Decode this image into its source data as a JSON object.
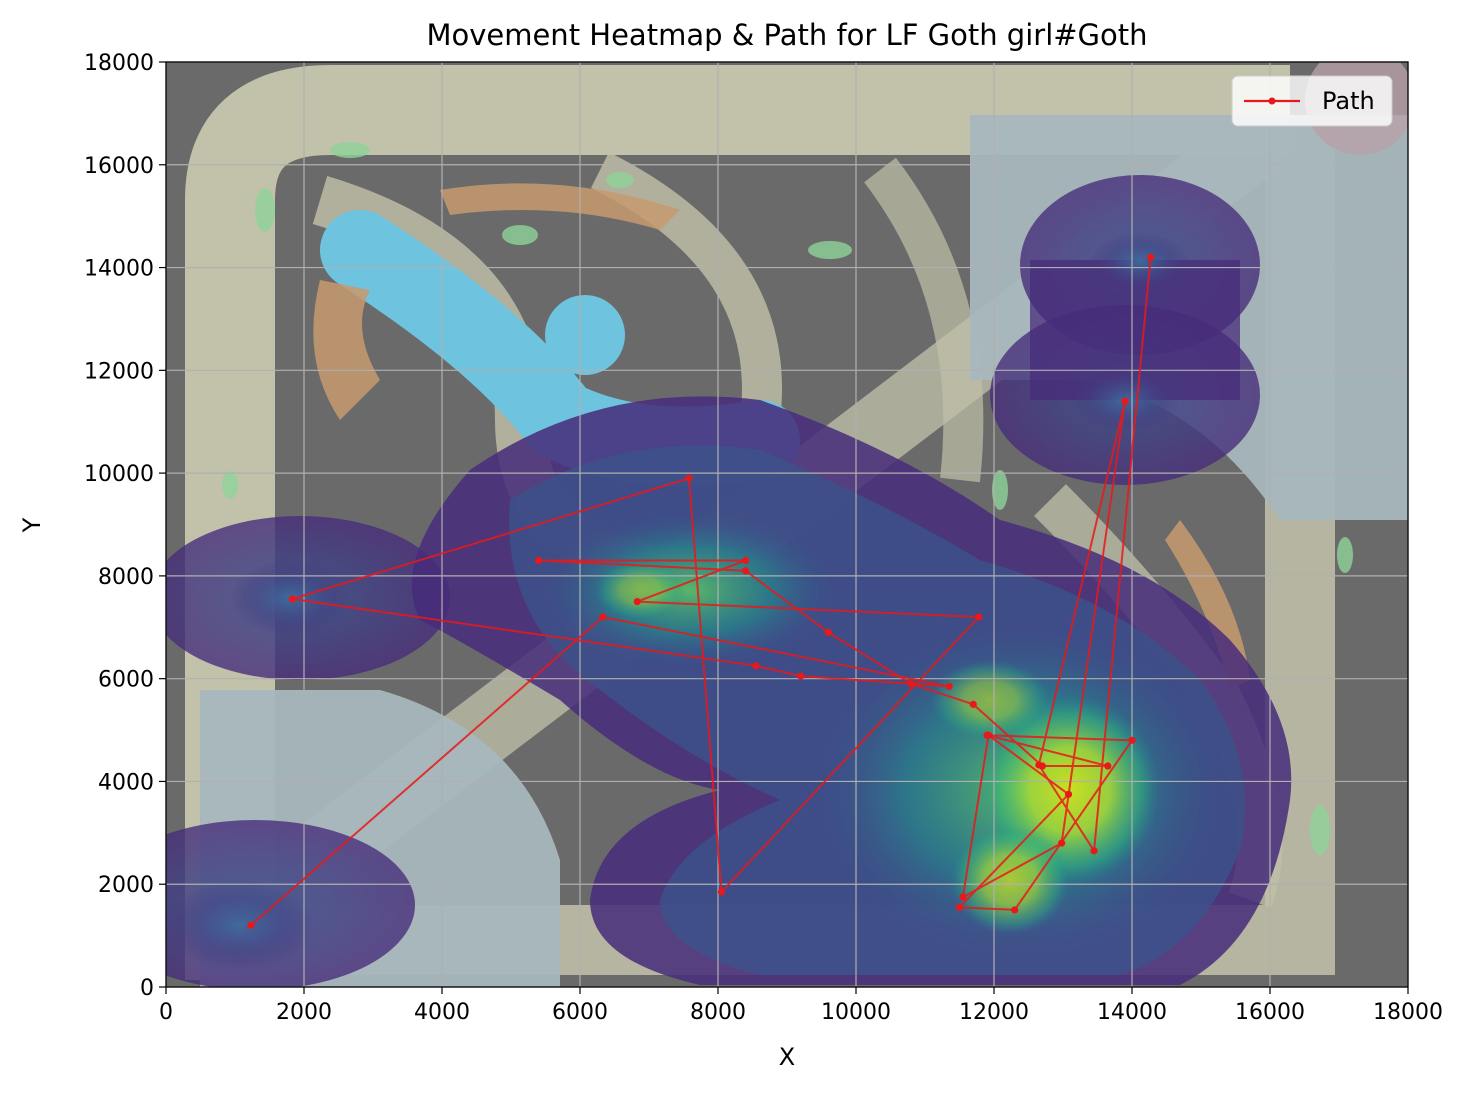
{
  "chart_data": {
    "type": "line",
    "title": "Movement Heatmap & Path for LF Goth girl#Goth",
    "xlabel": "X",
    "ylabel": "Y",
    "xlim": [
      0,
      18000
    ],
    "ylim": [
      0,
      18000
    ],
    "xticks": [
      "0",
      "2000",
      "4000",
      "6000",
      "8000",
      "10000",
      "12000",
      "14000",
      "16000",
      "18000"
    ],
    "yticks": [
      "0",
      "2000",
      "4000",
      "6000",
      "8000",
      "10000",
      "12000",
      "14000",
      "16000",
      "18000"
    ],
    "grid": true,
    "legend_position": "top-right",
    "background": "game minimap with density heatmap (viridis) overlay",
    "series": [
      {
        "name": "Path",
        "color": "#e8191a",
        "marker": "circle",
        "points": [
          [
            1230,
            1200
          ],
          [
            6330,
            7200
          ],
          [
            11350,
            5850
          ],
          [
            9200,
            6050
          ],
          [
            8550,
            6250
          ],
          [
            1830,
            7550
          ],
          [
            7580,
            9900
          ],
          [
            8050,
            1850
          ],
          [
            11780,
            7200
          ],
          [
            6830,
            7500
          ],
          [
            8400,
            8300
          ],
          [
            5400,
            8300
          ],
          [
            8400,
            8100
          ],
          [
            9600,
            6900
          ],
          [
            10800,
            5900
          ],
          [
            11700,
            5500
          ],
          [
            12700,
            4300
          ],
          [
            13650,
            4300
          ],
          [
            11900,
            4900
          ],
          [
            14000,
            4800
          ],
          [
            12300,
            1500
          ],
          [
            11500,
            1550
          ],
          [
            13080,
            3750
          ],
          [
            11920,
            4900
          ],
          [
            11550,
            1750
          ],
          [
            12980,
            2800
          ],
          [
            13900,
            11400
          ],
          [
            12650,
            4320
          ],
          [
            13450,
            2650
          ],
          [
            14270,
            14200
          ]
        ]
      }
    ]
  }
}
